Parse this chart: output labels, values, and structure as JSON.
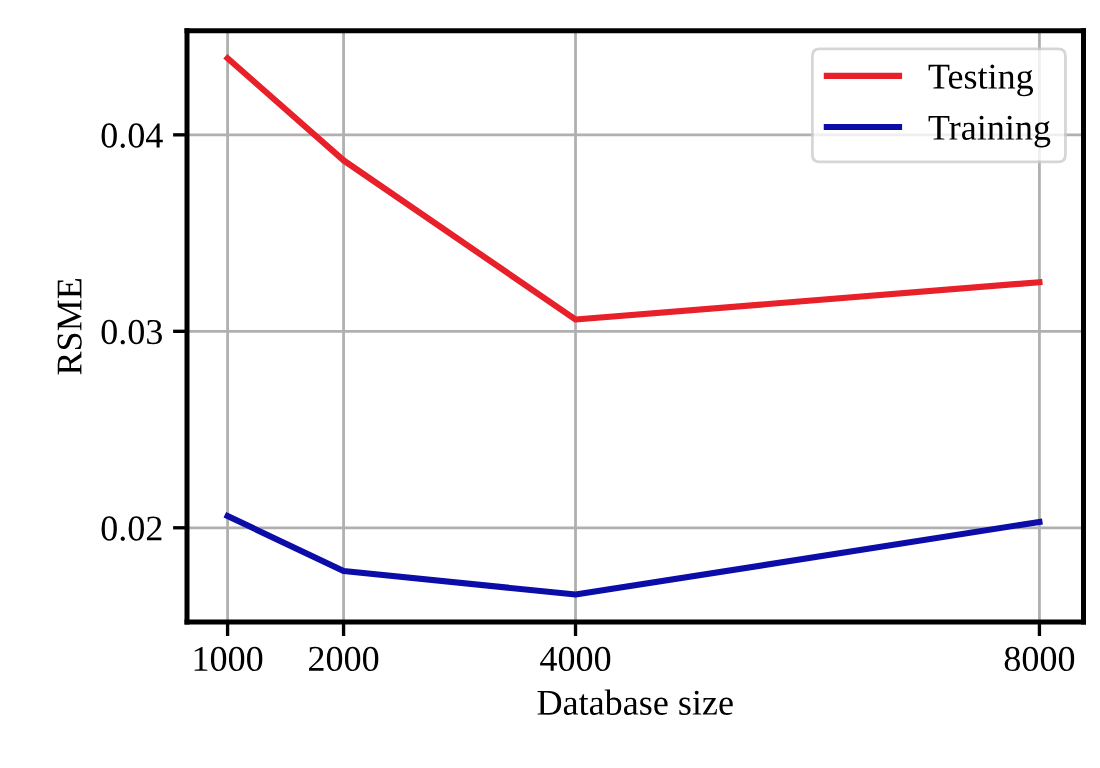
{
  "chart_data": {
    "type": "line",
    "xlabel": "Database size",
    "ylabel": "RSME",
    "x": [
      1000,
      2000,
      4000,
      8000
    ],
    "series": [
      {
        "name": "Testing",
        "color": "#e8202a",
        "values": [
          0.0439,
          0.0387,
          0.0306,
          0.0325
        ]
      },
      {
        "name": "Training",
        "color": "#0c0ca8",
        "values": [
          0.0206,
          0.0178,
          0.0166,
          0.0203
        ]
      }
    ],
    "xlim": [
      650,
      8380
    ],
    "xticks": [
      1000,
      2000,
      4000,
      8000
    ],
    "ylim": [
      0.0152,
      0.0453
    ],
    "yticks": [
      0.02,
      0.03,
      0.04
    ],
    "grid": true,
    "legend": "top right",
    "marker": "none",
    "line_style": "solid"
  }
}
